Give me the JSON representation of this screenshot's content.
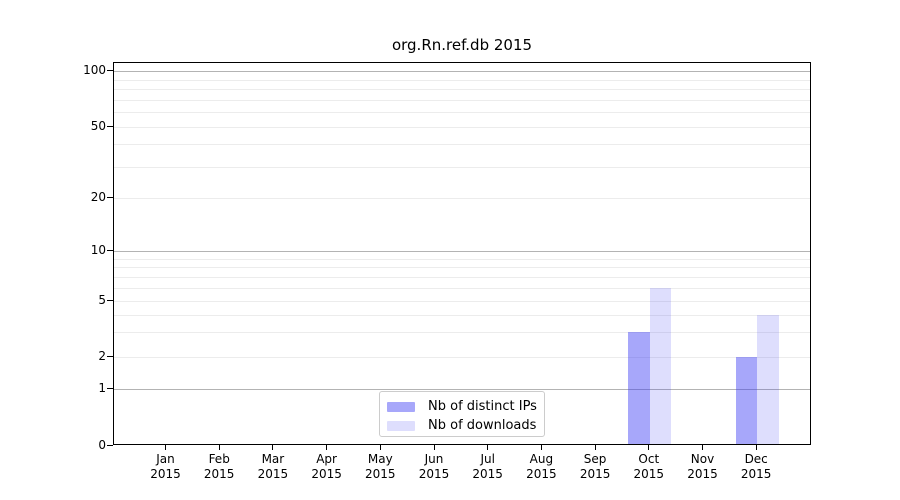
{
  "chart_data": {
    "type": "bar",
    "title": "org.Rn.ref.db 2015",
    "categories": [
      "Jan 2015",
      "Feb 2015",
      "Mar 2015",
      "Apr 2015",
      "May 2015",
      "Jun 2015",
      "Jul 2015",
      "Aug 2015",
      "Sep 2015",
      "Oct 2015",
      "Nov 2015",
      "Dec 2015"
    ],
    "series": [
      {
        "name": "Nb of distinct IPs",
        "color": "#a7a7fa",
        "fill": "rgba(60,60,245,0.45)",
        "values": [
          0,
          0,
          0,
          0,
          0,
          0,
          0,
          0,
          0,
          3,
          0,
          2
        ]
      },
      {
        "name": "Nb of downloads",
        "color": "#dcdcfb",
        "fill": "rgba(60,60,245,0.17)",
        "values": [
          0,
          0,
          0,
          0,
          0,
          0,
          0,
          0,
          0,
          6,
          0,
          4
        ]
      }
    ],
    "xlabel": "",
    "ylabel": "",
    "yscale": "symlog",
    "ylim": [
      0,
      110
    ],
    "ytick_values": [
      0,
      1,
      2,
      5,
      10,
      20,
      50,
      100
    ],
    "ytick_labels": [
      "0",
      "1",
      "2",
      "5",
      "10",
      "20",
      "50",
      "100"
    ],
    "major_gridlines": [
      1,
      10,
      100
    ],
    "minor_gridlines": [
      2,
      3,
      4,
      5,
      6,
      7,
      8,
      9,
      20,
      30,
      40,
      50,
      60,
      70,
      80,
      90
    ],
    "grid": true,
    "legend_position": "lower center",
    "colors": {
      "spine": "#000000",
      "major_grid": "#b3b3b3",
      "minor_grid": "#ececec",
      "background": "#ffffff",
      "text": "#000000"
    }
  }
}
